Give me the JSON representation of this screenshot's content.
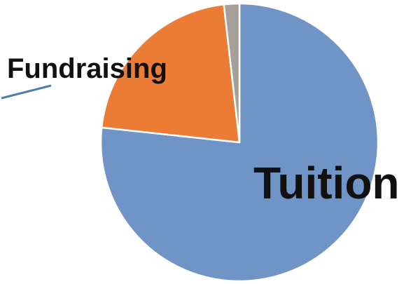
{
  "chart_data": {
    "type": "pie",
    "slices": [
      {
        "label": "Tuition",
        "value": 76.7,
        "color": "#7094C6"
      },
      {
        "label": "Fundraising",
        "value": 21.5,
        "color": "#EC7B35"
      },
      {
        "label": "",
        "value": 1.8,
        "color": "#A5A09A"
      }
    ],
    "labels": {
      "tuition": "Tuition",
      "fundraising": "Fundraising"
    },
    "leader_line_color": "#4F7DAF",
    "slice_border_color": "#ffffff"
  }
}
